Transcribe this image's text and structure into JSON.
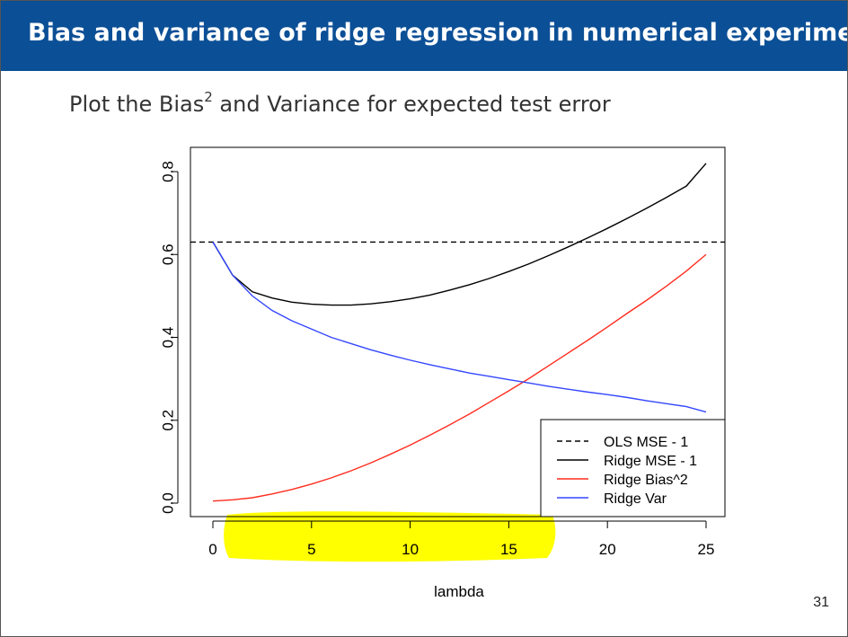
{
  "slide": {
    "title": "Bias and variance of ridge regression in numerical experiment",
    "subtitle_prefix": "Plot the Bias",
    "subtitle_sup": "2",
    "subtitle_suffix": " and Variance for expected test error",
    "page_number": "31"
  },
  "colors": {
    "header_bg": "#0b4f96",
    "ols": "#000000",
    "ridge_mse": "#000000",
    "ridge_bias": "#ff2d1f",
    "ridge_var": "#3447ff",
    "highlight": "#ffff00"
  },
  "chart_data": {
    "type": "line",
    "title": "",
    "xlabel": "lambda",
    "ylabel": "",
    "xlim": [
      0,
      25
    ],
    "ylim": [
      0,
      0.8
    ],
    "x_ticks": [
      "0",
      "5",
      "10",
      "15",
      "20",
      "25"
    ],
    "y_ticks": [
      "0.0",
      "0.2",
      "0.4",
      "0.6",
      "0.8"
    ],
    "x": [
      0,
      1,
      2,
      3,
      4,
      5,
      6,
      7,
      8,
      9,
      10,
      11,
      12,
      13,
      14,
      15,
      16,
      17,
      18,
      19,
      20,
      21,
      22,
      23,
      24,
      25
    ],
    "series": [
      {
        "name": "OLS MSE - 1",
        "style": "dashed",
        "values": [
          0.63,
          0.63,
          0.63,
          0.63,
          0.63,
          0.63,
          0.63,
          0.63,
          0.63,
          0.63,
          0.63,
          0.63,
          0.63,
          0.63,
          0.63,
          0.63,
          0.63,
          0.63,
          0.63,
          0.63,
          0.63,
          0.63,
          0.63,
          0.63,
          0.63,
          0.63
        ]
      },
      {
        "name": "Ridge MSE - 1",
        "style": "solid",
        "values": [
          0.63,
          0.55,
          0.51,
          0.495,
          0.485,
          0.48,
          0.478,
          0.478,
          0.481,
          0.486,
          0.493,
          0.502,
          0.514,
          0.527,
          0.542,
          0.559,
          0.577,
          0.597,
          0.618,
          0.64,
          0.663,
          0.687,
          0.712,
          0.738,
          0.765,
          0.82
        ]
      },
      {
        "name": "Ridge Bias^2",
        "style": "solid",
        "values": [
          0.005,
          0.008,
          0.013,
          0.022,
          0.033,
          0.046,
          0.061,
          0.078,
          0.097,
          0.118,
          0.14,
          0.164,
          0.189,
          0.215,
          0.243,
          0.271,
          0.3,
          0.331,
          0.362,
          0.393,
          0.425,
          0.458,
          0.49,
          0.524,
          0.56,
          0.6
        ]
      },
      {
        "name": "Ridge Var",
        "style": "solid",
        "values": [
          0.63,
          0.55,
          0.5,
          0.465,
          0.44,
          0.42,
          0.4,
          0.385,
          0.37,
          0.357,
          0.345,
          0.334,
          0.324,
          0.314,
          0.306,
          0.298,
          0.29,
          0.282,
          0.275,
          0.268,
          0.262,
          0.255,
          0.247,
          0.24,
          0.233,
          0.22
        ]
      }
    ],
    "legend_position": "bottom-right"
  }
}
